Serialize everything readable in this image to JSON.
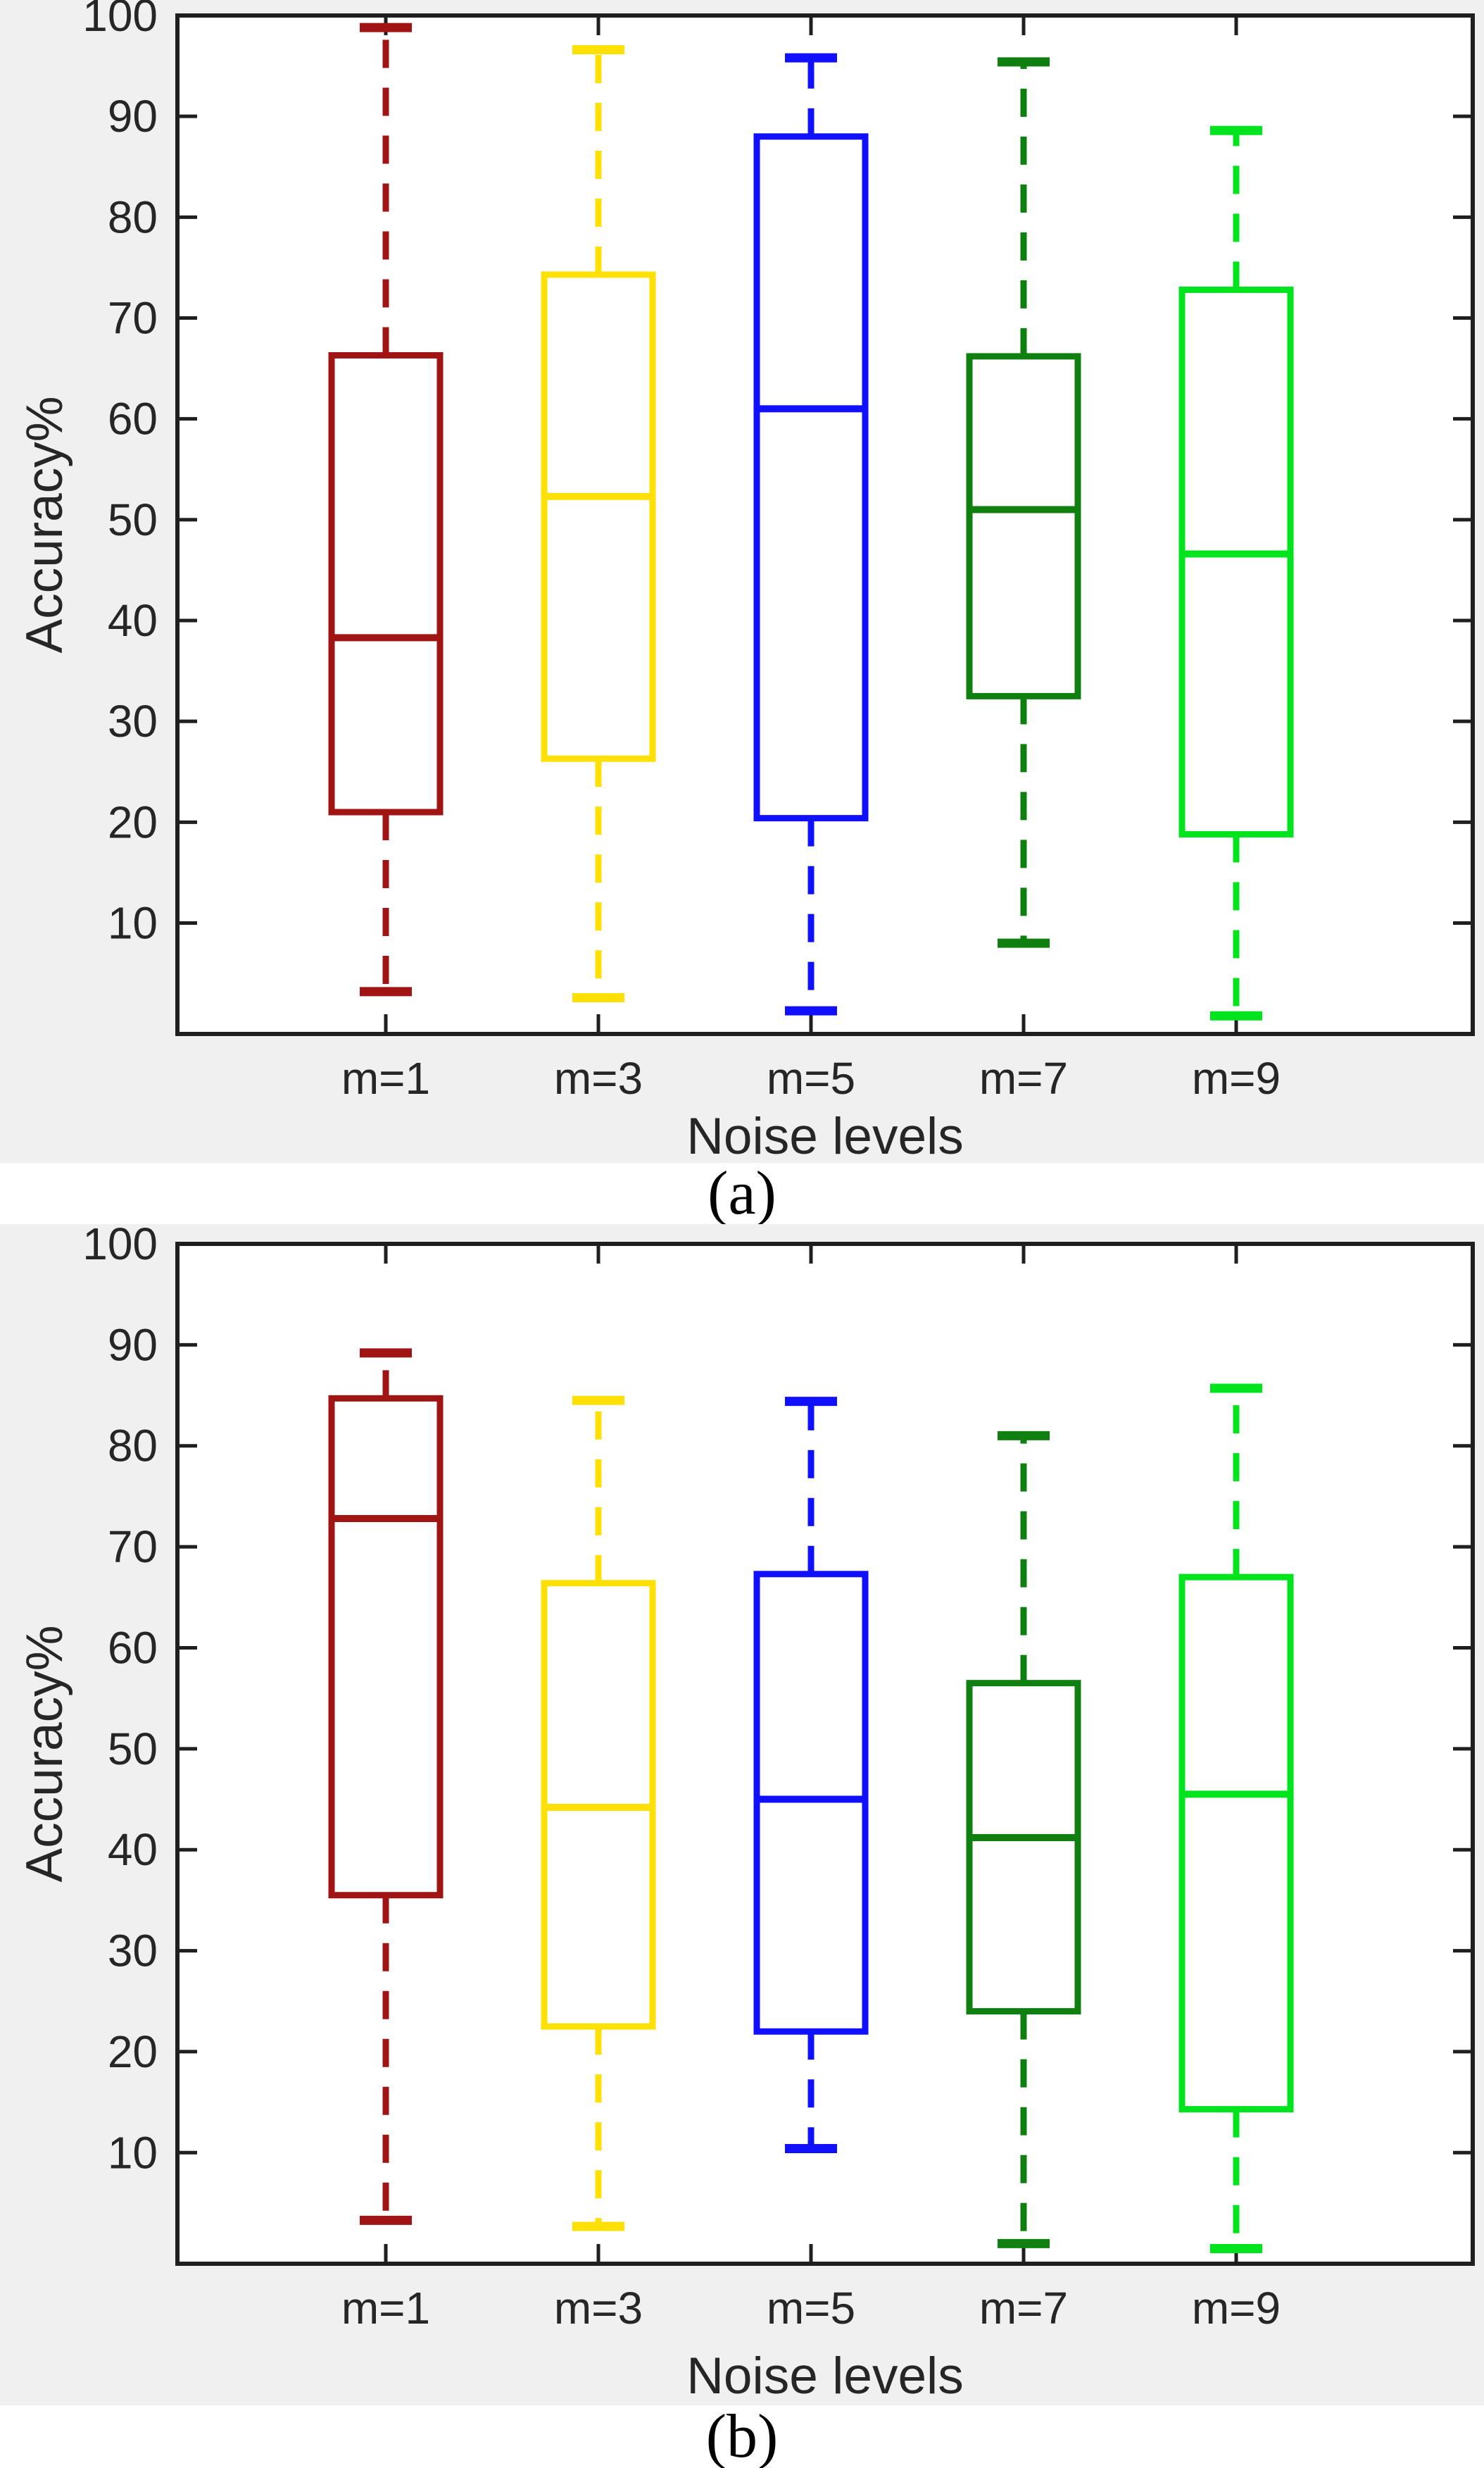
{
  "page_title": "Boxplot comparison figure",
  "colors": {
    "figure_background": "#F0F0F0",
    "plot_background": "#FFFFFF",
    "axis_color": "#1F1F1F",
    "text_color": "#262626",
    "caption_color": "#000000",
    "series_colors": {
      "m=1": "#A01414",
      "m=3": "#FFE005",
      "m=5": "#1010FF",
      "m=7": "#0F800F",
      "m=9": "#00E41E"
    }
  },
  "chart_data": [
    {
      "type": "boxplot",
      "caption": "(a)",
      "xlabel": "Noise levels",
      "ylabel": "Accuracy%",
      "categories": [
        "m=1",
        "m=3",
        "m=5",
        "m=7",
        "m=9"
      ],
      "ylim": [
        0,
        100
      ],
      "yticks": [
        10,
        20,
        30,
        40,
        50,
        60,
        70,
        80,
        90,
        100
      ],
      "grid": false,
      "legend": null,
      "series": [
        {
          "name": "m=1",
          "color": "#A01414",
          "whisker_low": 3.2,
          "q1": 21.0,
          "median": 38.3,
          "q3": 66.3,
          "whisker_high": 98.8
        },
        {
          "name": "m=3",
          "color": "#FFE005",
          "whisker_low": 2.6,
          "q1": 26.3,
          "median": 52.3,
          "q3": 74.3,
          "whisker_high": 96.6
        },
        {
          "name": "m=5",
          "color": "#1010FF",
          "whisker_low": 1.3,
          "q1": 20.4,
          "median": 61.0,
          "q3": 88.0,
          "whisker_high": 95.8
        },
        {
          "name": "m=7",
          "color": "#0F800F",
          "whisker_low": 8.0,
          "q1": 32.5,
          "median": 51.0,
          "q3": 66.2,
          "whisker_high": 95.4
        },
        {
          "name": "m=9",
          "color": "#00E41E",
          "whisker_low": 0.8,
          "q1": 18.8,
          "median": 46.6,
          "q3": 72.8,
          "whisker_high": 88.6
        }
      ]
    },
    {
      "type": "boxplot",
      "caption": "(b)",
      "xlabel": "Noise levels",
      "ylabel": "Accuracy%",
      "categories": [
        "m=1",
        "m=3",
        "m=5",
        "m=7",
        "m=9"
      ],
      "ylim": [
        0,
        100
      ],
      "yticks": [
        10,
        20,
        30,
        40,
        50,
        60,
        70,
        80,
        90,
        100
      ],
      "grid": false,
      "legend": null,
      "series": [
        {
          "name": "m=1",
          "color": "#A01414",
          "whisker_low": 3.3,
          "q1": 35.5,
          "median": 72.8,
          "q3": 84.7,
          "whisker_high": 89.2
        },
        {
          "name": "m=3",
          "color": "#FFE005",
          "whisker_low": 2.7,
          "q1": 22.5,
          "median": 44.2,
          "q3": 66.4,
          "whisker_high": 84.5
        },
        {
          "name": "m=5",
          "color": "#1010FF",
          "whisker_low": 10.4,
          "q1": 22.0,
          "median": 45.0,
          "q3": 67.3,
          "whisker_high": 84.4
        },
        {
          "name": "m=7",
          "color": "#0F800F",
          "whisker_low": 1.0,
          "q1": 24.0,
          "median": 41.2,
          "q3": 56.5,
          "whisker_high": 81.0
        },
        {
          "name": "m=9",
          "color": "#00E41E",
          "whisker_low": 0.5,
          "q1": 14.3,
          "median": 45.5,
          "q3": 67.0,
          "whisker_high": 85.7
        }
      ]
    }
  ]
}
